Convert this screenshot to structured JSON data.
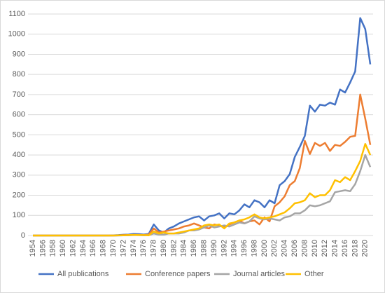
{
  "chart_data": {
    "type": "line",
    "x": [
      1954,
      1955,
      1956,
      1957,
      1958,
      1959,
      1960,
      1961,
      1962,
      1963,
      1964,
      1965,
      1966,
      1967,
      1968,
      1969,
      1970,
      1971,
      1972,
      1973,
      1974,
      1975,
      1976,
      1977,
      1978,
      1979,
      1980,
      1981,
      1982,
      1983,
      1984,
      1985,
      1986,
      1987,
      1988,
      1989,
      1990,
      1991,
      1992,
      1993,
      1994,
      1995,
      1996,
      1997,
      1998,
      1999,
      2000,
      2001,
      2002,
      2003,
      2004,
      2005,
      2006,
      2007,
      2008,
      2009,
      2010,
      2011,
      2012,
      2013,
      2014,
      2015,
      2016,
      2017,
      2018,
      2019,
      2020,
      2021
    ],
    "series": [
      {
        "name": "All publications",
        "color": "#4472c4",
        "values": [
          0,
          0,
          0,
          0,
          0,
          0,
          0,
          0,
          0,
          0,
          0,
          0,
          0,
          0,
          0,
          0,
          1,
          2,
          4,
          5,
          8,
          7,
          5,
          8,
          55,
          25,
          15,
          35,
          45,
          60,
          70,
          80,
          90,
          95,
          75,
          95,
          100,
          110,
          85,
          110,
          105,
          125,
          155,
          140,
          175,
          165,
          140,
          175,
          160,
          250,
          270,
          305,
          390,
          440,
          495,
          645,
          615,
          650,
          645,
          660,
          650,
          725,
          710,
          760,
          815,
          1080,
          1025,
          850
        ]
      },
      {
        "name": "Conference papers",
        "color": "#ed7d31",
        "values": [
          0,
          0,
          0,
          0,
          0,
          0,
          0,
          0,
          0,
          0,
          0,
          0,
          0,
          0,
          0,
          0,
          0,
          1,
          2,
          2,
          3,
          3,
          2,
          5,
          35,
          15,
          20,
          25,
          30,
          35,
          45,
          50,
          60,
          50,
          40,
          35,
          55,
          50,
          40,
          55,
          65,
          75,
          60,
          70,
          75,
          55,
          90,
          70,
          145,
          165,
          195,
          250,
          270,
          335,
          470,
          405,
          460,
          445,
          460,
          420,
          450,
          445,
          465,
          490,
          495,
          700,
          580,
          450
        ]
      },
      {
        "name": "Journal articles",
        "color": "#a5a5a5",
        "values": [
          0,
          0,
          0,
          0,
          0,
          0,
          0,
          0,
          0,
          0,
          0,
          0,
          0,
          0,
          0,
          0,
          0,
          0,
          1,
          1,
          2,
          2,
          1,
          2,
          10,
          5,
          5,
          10,
          10,
          10,
          15,
          25,
          25,
          30,
          40,
          50,
          40,
          45,
          50,
          45,
          55,
          65,
          60,
          70,
          95,
          85,
          80,
          85,
          80,
          75,
          90,
          95,
          110,
          110,
          125,
          150,
          145,
          150,
          160,
          170,
          215,
          220,
          225,
          220,
          255,
          320,
          400,
          340
        ]
      },
      {
        "name": "Other",
        "color": "#ffc000",
        "values": [
          0,
          0,
          0,
          0,
          0,
          0,
          0,
          0,
          0,
          0,
          0,
          0,
          0,
          0,
          0,
          0,
          0,
          1,
          1,
          2,
          3,
          2,
          2,
          1,
          20,
          10,
          15,
          10,
          10,
          15,
          20,
          25,
          30,
          35,
          50,
          55,
          50,
          55,
          35,
          60,
          65,
          75,
          80,
          90,
          105,
          90,
          85,
          90,
          95,
          105,
          115,
          135,
          160,
          165,
          175,
          210,
          190,
          200,
          200,
          225,
          275,
          265,
          290,
          275,
          320,
          370,
          455,
          400
        ]
      }
    ],
    "xlim": [
      1954,
      2021
    ],
    "xticks": [
      1954,
      1956,
      1958,
      1960,
      1962,
      1964,
      1966,
      1968,
      1970,
      1972,
      1974,
      1976,
      1978,
      1980,
      1982,
      1984,
      1986,
      1988,
      1990,
      1992,
      1994,
      1996,
      1998,
      2000,
      2002,
      2004,
      2006,
      2008,
      2010,
      2012,
      2014,
      2016,
      2018,
      2020
    ],
    "ylim": [
      0,
      1100
    ],
    "yticks": [
      0,
      100,
      200,
      300,
      400,
      500,
      600,
      700,
      800,
      900,
      1000,
      1100
    ],
    "grid": true,
    "legend": "bottom"
  }
}
